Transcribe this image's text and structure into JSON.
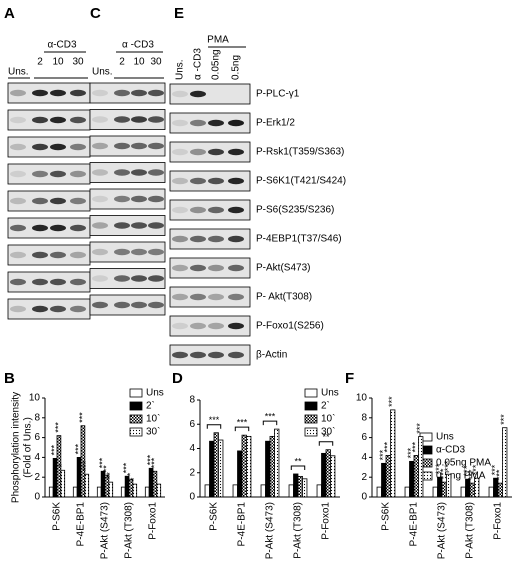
{
  "panels": {
    "A": {
      "letter": "A",
      "uns": "Uns.",
      "stim": "α-CD3",
      "lanes": [
        "2",
        "10",
        "30"
      ]
    },
    "C": {
      "letter": "C",
      "uns": "Uns.",
      "stim": "α -CD3",
      "lanes": [
        "2",
        "10",
        "30"
      ]
    },
    "E": {
      "letter": "E",
      "columns": [
        "Uns.",
        "α -CD3",
        "0.05ng",
        "0.5ng"
      ],
      "group": "PMA",
      "rows": [
        "P-PLC-γ1",
        "P-Erk1/2",
        "P-Rsk1(T359/S363)",
        "P-S6K1(T421/S424)",
        "P-S6(S235/S236)",
        "P-4EBP1(T37/S46)",
        "P-Akt(S473)",
        "P- Akt(T308)",
        "P-Foxo1(S256)",
        "β-Actin"
      ]
    }
  },
  "chart_data": [
    {
      "type": "bar",
      "letter": "B",
      "ylabel": [
        "Phosphorylation intensity",
        "(Fold of Uns.)"
      ],
      "categories": [
        "P-S6K",
        "P-4E-BP1",
        "P-Akt (S473)",
        "P-Akt (T308)",
        "P-Foxo1"
      ],
      "ylim": [
        0,
        10
      ],
      "yticks": [
        0,
        2,
        4,
        6,
        8,
        10
      ],
      "series": [
        {
          "name": "Uns",
          "color": "#ffffff",
          "pattern": "solid",
          "values": [
            1,
            1,
            1,
            1,
            1
          ],
          "labels": [
            null,
            null,
            null,
            null,
            null
          ]
        },
        {
          "name": "2`",
          "color": "#000000",
          "pattern": "solid",
          "values": [
            3.9,
            4.0,
            2.6,
            2.1,
            2.9
          ],
          "labels": [
            "***",
            "***",
            "***",
            "***",
            "***"
          ]
        },
        {
          "name": "10`",
          "color": "#000000",
          "pattern": "checker",
          "values": [
            6.2,
            7.2,
            2.2,
            1.8,
            2.6
          ],
          "labels": [
            "***",
            "***",
            "**",
            "*",
            "***"
          ]
        },
        {
          "name": "30`",
          "color": "#000000",
          "pattern": "dots",
          "values": [
            2.7,
            2.3,
            1.5,
            1.3,
            1.3
          ],
          "labels": [
            "*",
            "***",
            "**",
            "*",
            null
          ]
        }
      ]
    },
    {
      "type": "bar",
      "letter": "D",
      "categories": [
        "P-S6K",
        "P-4E-BP1",
        "P-Akt (S473)",
        "P-Akt (T308)",
        "P-Foxo1"
      ],
      "ylim": [
        0,
        8
      ],
      "yticks": [
        0,
        2,
        4,
        6,
        8
      ],
      "brackets": [
        "***",
        "***",
        "***",
        "**",
        "**"
      ],
      "series": [
        {
          "name": "Uns",
          "color": "#ffffff",
          "pattern": "solid",
          "values": [
            1,
            1,
            1,
            1,
            1
          ]
        },
        {
          "name": "2`",
          "color": "#000000",
          "pattern": "solid",
          "values": [
            4.6,
            3.8,
            4.6,
            1.9,
            3.6
          ]
        },
        {
          "name": "10`",
          "color": "#000000",
          "pattern": "checker",
          "values": [
            5.3,
            5.1,
            5.0,
            1.7,
            3.9
          ]
        },
        {
          "name": "30`",
          "color": "#000000",
          "pattern": "dots",
          "values": [
            4.7,
            5.0,
            5.6,
            1.5,
            3.4
          ]
        }
      ]
    },
    {
      "type": "bar",
      "letter": "F",
      "categories": [
        "P-S6K",
        "P-4E-BP1",
        "P-Akt (S473)",
        "P-Akt (T308)",
        "P-Foxo1"
      ],
      "ylim": [
        0,
        10
      ],
      "yticks": [
        0,
        2,
        4,
        6,
        8,
        10
      ],
      "series": [
        {
          "name": "Uns",
          "color": "#ffffff",
          "pattern": "solid",
          "values": [
            1,
            1,
            1,
            1,
            1
          ],
          "labels": [
            null,
            null,
            null,
            null,
            null
          ]
        },
        {
          "name": "α-CD3",
          "color": "#000000",
          "pattern": "solid",
          "values": [
            3.4,
            3.6,
            2.0,
            1.8,
            1.9
          ],
          "labels": [
            "***",
            "***",
            "***",
            "***",
            "***"
          ]
        },
        {
          "name": "0.05ng PMA",
          "color": "#000000",
          "pattern": "checker",
          "values": [
            4.2,
            4.2,
            1.5,
            1.4,
            1.4
          ],
          "labels": [
            "***",
            "***",
            "***",
            "***",
            "***"
          ]
        },
        {
          "name": "0.5ng PMA",
          "color": "#000000",
          "pattern": "dots",
          "values": [
            8.8,
            6.1,
            2.3,
            1.9,
            7.0
          ],
          "labels": [
            "***",
            "***",
            "***",
            "***",
            "***"
          ]
        }
      ]
    }
  ]
}
